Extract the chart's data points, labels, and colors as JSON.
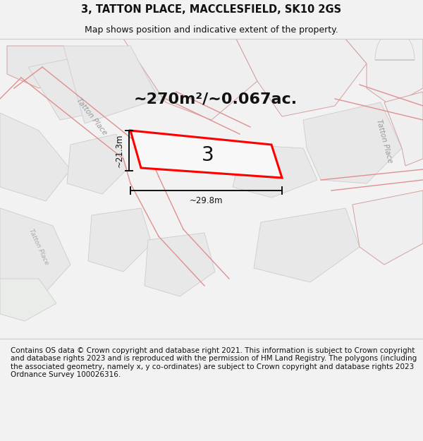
{
  "title_line1": "3, TATTON PLACE, MACCLESFIELD, SK10 2GS",
  "title_line2": "Map shows position and indicative extent of the property.",
  "area_text": "~270m²/~0.067ac.",
  "label_number": "3",
  "dim_width": "~29.8m",
  "dim_height": "~21.3m",
  "road_label_left": "Tatton Place",
  "road_label_right": "Tatton Place",
  "footer_text": "Contains OS data © Crown copyright and database right 2021. This information is subject to Crown copyright and database rights 2023 and is reproduced with the permission of HM Land Registry. The polygons (including the associated geometry, namely x, y co-ordinates) are subject to Crown copyright and database rights 2023 Ordnance Survey 100026316.",
  "bg_color": "#f2f2f2",
  "map_bg": "#ffffff",
  "poly_fill": "#e8e8e8",
  "poly_edge": "#d4a0a0",
  "highlight_color": "#ff0000",
  "dim_color": "#111111",
  "title_fontsize": 10.5,
  "subtitle_fontsize": 9,
  "footer_fontsize": 7.5,
  "area_fontsize": 16,
  "num_fontsize": 18,
  "road_fontsize": 7.5
}
